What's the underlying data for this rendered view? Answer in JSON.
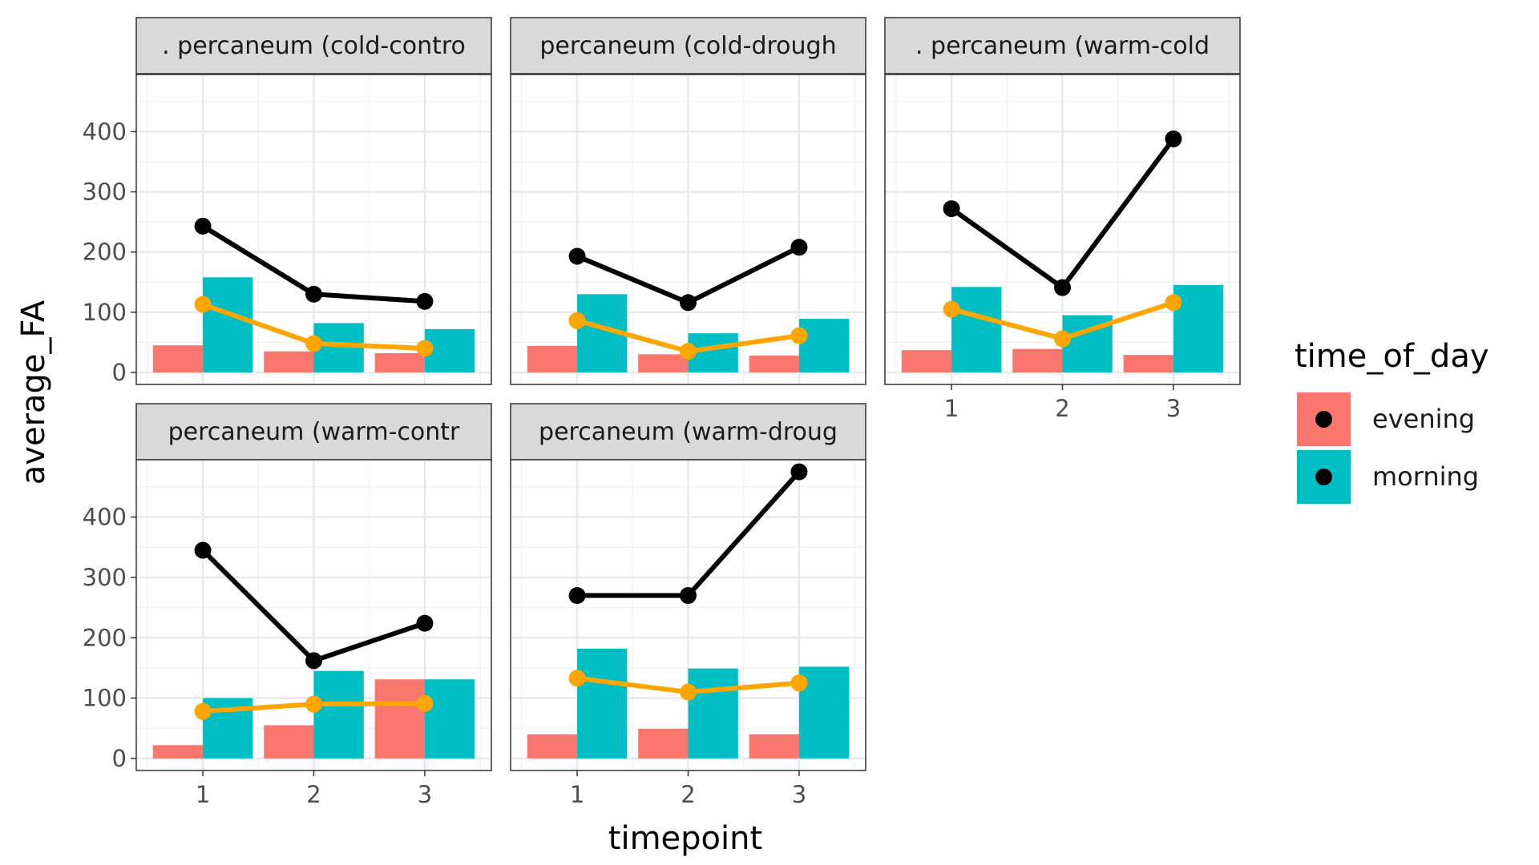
{
  "chart_data": {
    "type": "bar",
    "overlay": "line",
    "xlabel": "timepoint",
    "ylabel": "average_FA",
    "x_categories": [
      "1",
      "2",
      "3"
    ],
    "ylim": [
      -20,
      495
    ],
    "y_ticks": [
      0,
      100,
      200,
      300,
      400
    ],
    "grid": true,
    "legend": {
      "title": "time_of_day",
      "position": "right",
      "entries": [
        {
          "label": "evening",
          "fill": "#F8766D"
        },
        {
          "label": "morning",
          "fill": "#00BFC4"
        }
      ]
    },
    "line_colors": {
      "black": "#000000",
      "orange": "#FFA500"
    },
    "panels": [
      {
        "strip": ". percaneum (cold-contro",
        "bars": {
          "evening": [
            45,
            35,
            32
          ],
          "morning": [
            158,
            82,
            72
          ]
        },
        "lines": {
          "black": [
            243,
            130,
            118
          ],
          "orange": [
            113,
            48,
            40
          ]
        }
      },
      {
        "strip": "percaneum (cold-drough",
        "bars": {
          "evening": [
            44,
            30,
            28
          ],
          "morning": [
            130,
            65,
            89
          ]
        },
        "lines": {
          "black": [
            193,
            116,
            208
          ],
          "orange": [
            86,
            35,
            61
          ]
        }
      },
      {
        "strip": ". percaneum (warm-cold",
        "bars": {
          "evening": [
            37,
            39,
            29
          ],
          "morning": [
            142,
            95,
            145
          ]
        },
        "lines": {
          "black": [
            272,
            141,
            388
          ],
          "orange": [
            105,
            56,
            116
          ]
        }
      },
      {
        "strip": "percaneum (warm-contr",
        "bars": {
          "evening": [
            22,
            55,
            131
          ],
          "morning": [
            100,
            145,
            131
          ]
        },
        "lines": {
          "black": [
            345,
            162,
            224
          ],
          "orange": [
            78,
            90,
            91
          ]
        }
      },
      {
        "strip": "percaneum (warm-droug",
        "bars": {
          "evening": [
            40,
            49,
            40
          ],
          "morning": [
            182,
            149,
            152
          ]
        },
        "lines": {
          "black": [
            270,
            270,
            475
          ],
          "orange": [
            133,
            110,
            125
          ]
        }
      }
    ]
  }
}
